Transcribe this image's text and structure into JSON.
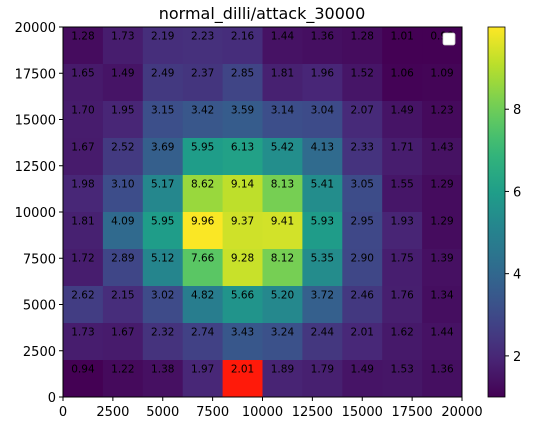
{
  "chart_data": {
    "type": "heatmap",
    "title": "normal_dilli/attack_30000",
    "xlabel": "",
    "ylabel": "",
    "xlim": [
      0,
      20000
    ],
    "ylim": [
      0,
      20000
    ],
    "x_ticks": [
      "0",
      "2500",
      "5000",
      "7500",
      "10000",
      "12500",
      "15000",
      "17500",
      "20000"
    ],
    "y_ticks": [
      "0",
      "2500",
      "5000",
      "7500",
      "10000",
      "12500",
      "15000",
      "17500",
      "20000"
    ],
    "colorbar": {
      "min": 1,
      "max": 10,
      "ticks": [
        "2",
        "4",
        "6",
        "8"
      ],
      "colormap": "viridis"
    },
    "highlight_color": "#ff1a0a",
    "highlight_cell": [
      9,
      4
    ],
    "legend": {
      "position": "top-right",
      "entries": [
        ""
      ]
    },
    "grid_rows_top_to_bottom": [
      [
        1.28,
        1.73,
        2.19,
        2.23,
        2.16,
        1.44,
        1.36,
        1.28,
        1.01,
        0.98
      ],
      [
        1.65,
        1.49,
        2.49,
        2.37,
        2.85,
        1.81,
        1.96,
        1.52,
        1.06,
        1.09
      ],
      [
        1.7,
        1.95,
        3.15,
        3.42,
        3.59,
        3.14,
        3.04,
        2.07,
        1.49,
        1.23
      ],
      [
        1.67,
        2.52,
        3.69,
        5.95,
        6.13,
        5.42,
        4.13,
        2.33,
        1.71,
        1.43
      ],
      [
        1.98,
        3.1,
        5.17,
        8.62,
        9.14,
        8.13,
        5.41,
        3.05,
        1.55,
        1.29
      ],
      [
        1.81,
        4.09,
        5.95,
        9.96,
        9.37,
        9.41,
        5.93,
        2.95,
        1.93,
        1.29
      ],
      [
        1.72,
        2.89,
        5.12,
        7.66,
        9.28,
        8.12,
        5.35,
        2.9,
        1.75,
        1.39
      ],
      [
        2.62,
        2.15,
        3.02,
        4.82,
        5.66,
        5.2,
        3.72,
        2.46,
        1.76,
        1.34
      ],
      [
        1.73,
        1.67,
        2.32,
        2.74,
        3.43,
        3.24,
        2.44,
        2.01,
        1.62,
        1.44
      ],
      [
        0.94,
        1.22,
        1.38,
        1.97,
        2.01,
        1.89,
        1.79,
        1.49,
        1.53,
        1.36
      ]
    ],
    "cell_labels_top_to_bottom": [
      [
        "1.28",
        "1.73",
        "2.19",
        "2.23",
        "2.16",
        "1.44",
        "1.36",
        "1.28",
        "1.01",
        "0.98"
      ],
      [
        "1.65",
        "1.49",
        "2.49",
        "2.37",
        "2.85",
        "1.81",
        "1.96",
        "1.52",
        "1.06",
        "1.09"
      ],
      [
        "1.70",
        "1.95",
        "3.15",
        "3.42",
        "3.59",
        "3.14",
        "3.04",
        "2.07",
        "1.49",
        "1.23"
      ],
      [
        "1.67",
        "2.52",
        "3.69",
        "5.95",
        "6.13",
        "5.42",
        "4.13",
        "2.33",
        "1.71",
        "1.43"
      ],
      [
        "1.98",
        "3.10",
        "5.17",
        "8.62",
        "9.14",
        "8.13",
        "5.41",
        "3.05",
        "1.55",
        "1.29"
      ],
      [
        "1.81",
        "4.09",
        "5.95",
        "9.96",
        "9.37",
        "9.41",
        "5.93",
        "2.95",
        "1.93",
        "1.29"
      ],
      [
        "1.72",
        "2.89",
        "5.12",
        "7.66",
        "9.28",
        "8.12",
        "5.35",
        "2.90",
        "1.75",
        "1.39"
      ],
      [
        "2.62",
        "2.15",
        "3.02",
        "4.82",
        "5.66",
        "5.20",
        "3.72",
        "2.46",
        "1.76",
        "1.34"
      ],
      [
        "1.73",
        "1.67",
        "2.32",
        "2.74",
        "3.43",
        "3.24",
        "2.44",
        "2.01",
        "1.62",
        "1.44"
      ],
      [
        "0.94",
        "1.22",
        "1.38",
        "1.97",
        "2.01",
        "1.89",
        "1.79",
        "1.49",
        "1.53",
        "1.36"
      ]
    ]
  }
}
